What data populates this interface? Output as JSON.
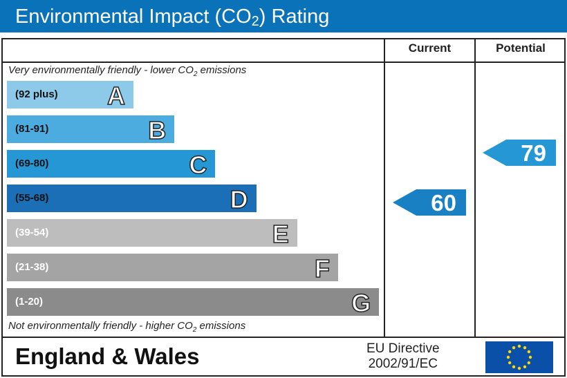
{
  "title": "Environmental Impact (CO2) Rating",
  "columns": {
    "current": "Current",
    "potential": "Potential"
  },
  "notes": {
    "top": "Very environmentally friendly - lower CO2 emissions",
    "bottom": "Not environmentally friendly - higher CO2 emissions"
  },
  "footer": {
    "region": "England & Wales",
    "directive_line1": "EU Directive",
    "directive_line2": "2002/91/EC",
    "flag_icon": "eu-flag-icon"
  },
  "chart_data": {
    "type": "bar",
    "categories": [
      "A",
      "B",
      "C",
      "D",
      "E",
      "F",
      "G"
    ],
    "ranges": [
      "(92 plus)",
      "(81-91)",
      "(69-80)",
      "(55-68)",
      "(39-54)",
      "(21-38)",
      "(1-20)"
    ],
    "colors": [
      "#8dcae9",
      "#4cabdf",
      "#2597d4",
      "#1a6fb6",
      "#bdbdbd",
      "#a4a4a4",
      "#8b8b8b"
    ],
    "current": {
      "value": 60,
      "band": "D",
      "color": "#1a80c4"
    },
    "potential": {
      "value": 79,
      "band": "C",
      "color": "#2597d4"
    }
  }
}
